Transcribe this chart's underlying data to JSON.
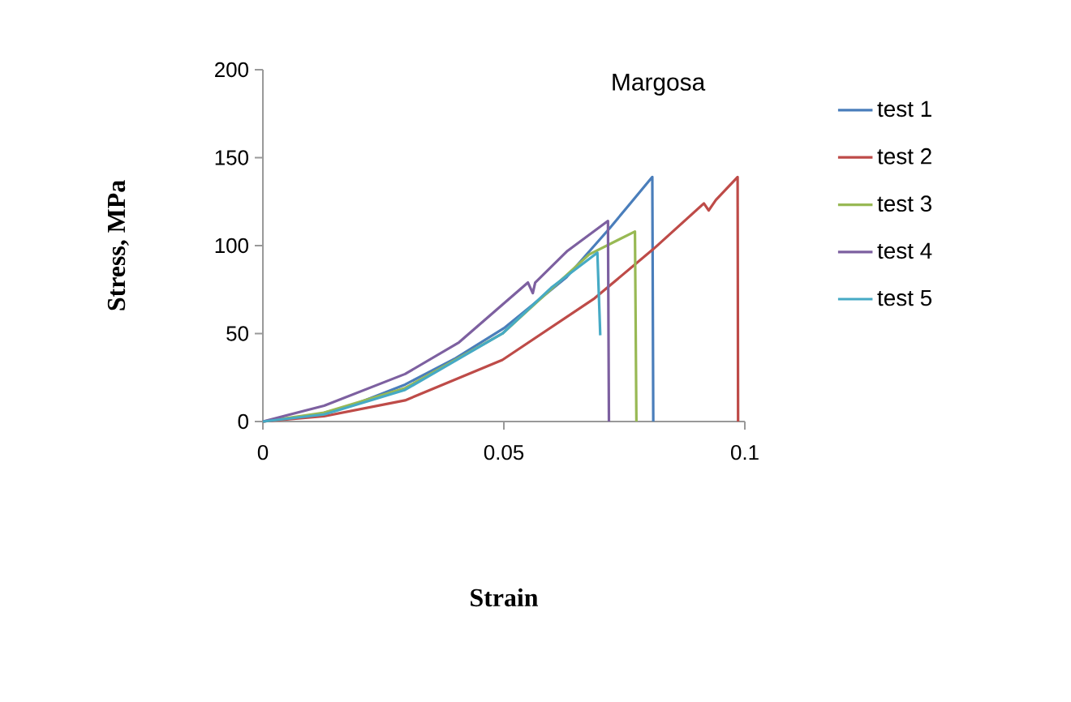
{
  "chart_data": {
    "type": "line",
    "title": "Margosa",
    "xlabel": "Strain",
    "ylabel": "Stress, MPa",
    "xlim": [
      0,
      0.1
    ],
    "xticks": [
      0,
      0.05,
      0.1
    ],
    "ylim": [
      0,
      200
    ],
    "yticks": [
      0,
      50,
      100,
      150,
      200
    ],
    "legend": "right",
    "marker": "none",
    "line_style": "solid",
    "series": [
      {
        "name": "test 1",
        "color": "#4a7ebb",
        "x": [
          0,
          0.01,
          0.0183,
          0.0295,
          0.04,
          0.05,
          0.063,
          0.072,
          0.0808,
          0.081
        ],
        "values": [
          0,
          3,
          9,
          21,
          36,
          53,
          82,
          110,
          139,
          0
        ]
      },
      {
        "name": "test 2",
        "color": "#be4b48",
        "x": [
          0,
          0.0127,
          0.0295,
          0.0497,
          0.0688,
          0.081,
          0.0915,
          0.0925,
          0.094,
          0.0985,
          0.0986
        ],
        "values": [
          0,
          3,
          12,
          35,
          70,
          98,
          124,
          120,
          126,
          139,
          0
        ]
      },
      {
        "name": "test 3",
        "color": "#98b954",
        "x": [
          0,
          0.0127,
          0.0295,
          0.0497,
          0.0677,
          0.0772,
          0.0775
        ],
        "values": [
          0,
          5,
          19,
          50,
          95,
          108,
          0
        ]
      },
      {
        "name": "test 4",
        "color": "#7d60a0",
        "x": [
          0,
          0.0127,
          0.0295,
          0.0407,
          0.055,
          0.056,
          0.0565,
          0.0632,
          0.0716,
          0.0718
        ],
        "values": [
          0,
          9,
          27,
          45,
          79,
          73,
          79,
          97,
          114,
          0
        ]
      },
      {
        "name": "test 5",
        "color": "#46aac5",
        "x": [
          0,
          0.0127,
          0.0295,
          0.0497,
          0.0598,
          0.0694,
          0.07
        ],
        "values": [
          0,
          4,
          18,
          50,
          76,
          96,
          49
        ]
      }
    ]
  }
}
